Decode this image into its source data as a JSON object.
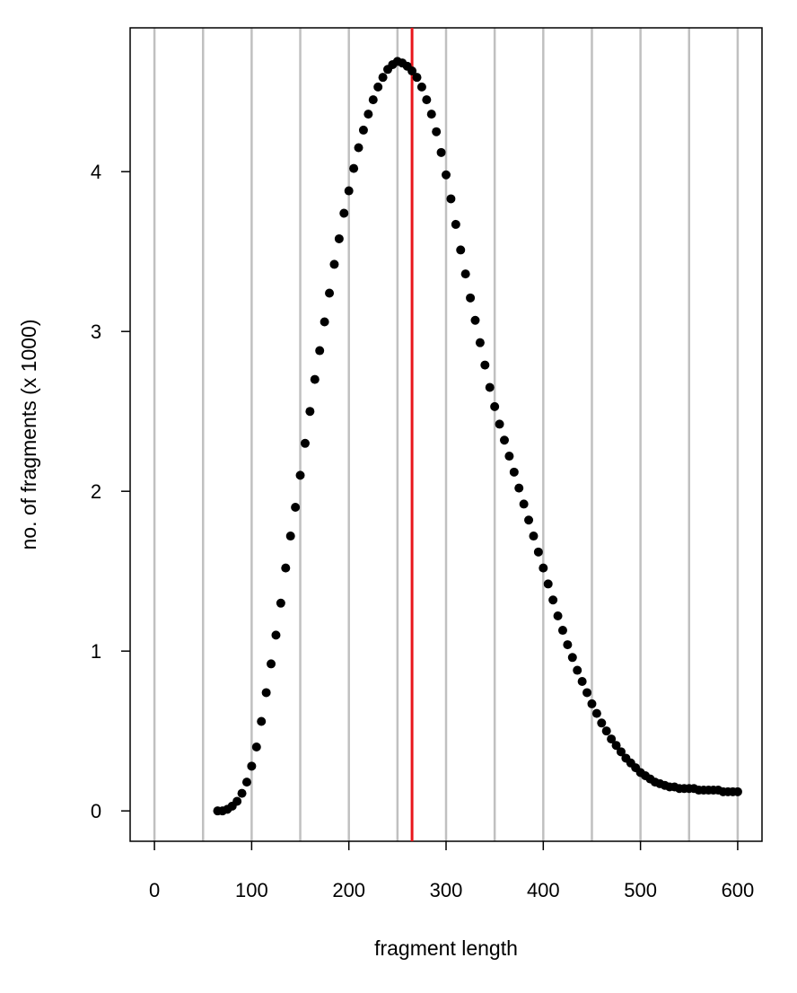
{
  "chart_data": {
    "type": "scatter",
    "xlabel": "fragment length",
    "ylabel": "no. of fragments (x 1000)",
    "xlim": [
      -25,
      625
    ],
    "ylim": [
      -0.19,
      4.9
    ],
    "x_ticks": [
      0,
      100,
      200,
      300,
      400,
      500,
      600
    ],
    "y_ticks": [
      0,
      1,
      2,
      3,
      4
    ],
    "vertical_gridlines": [
      0,
      50,
      100,
      150,
      200,
      250,
      300,
      350,
      400,
      450,
      500,
      550,
      600
    ],
    "reference_line_x": 265,
    "colors": {
      "points": "#000000",
      "reference_line": "#e8161b",
      "gridlines": "#c0c0c0"
    },
    "series": [
      {
        "x": [
          65,
          70,
          75,
          80,
          85,
          90,
          95,
          100,
          105,
          110,
          115,
          120,
          125,
          130,
          135,
          140,
          145,
          150,
          155,
          160,
          165,
          170,
          175,
          180,
          185,
          190,
          195,
          200,
          205,
          210,
          215,
          220,
          225,
          230,
          235,
          240,
          245,
          250,
          255,
          260,
          265,
          270,
          275,
          280,
          285,
          290,
          295,
          300,
          305,
          310,
          315,
          320,
          325,
          330,
          335,
          340,
          345,
          350,
          355,
          360,
          365,
          370,
          375,
          380,
          385,
          390,
          395,
          400,
          405,
          410,
          415,
          420,
          425,
          430,
          435,
          440,
          445,
          450,
          455,
          460,
          465,
          470,
          475,
          480,
          485,
          490,
          495,
          500,
          505,
          510,
          515,
          520,
          525,
          530,
          535,
          540,
          545,
          550,
          555,
          560,
          565,
          570,
          575,
          580,
          585,
          590,
          595,
          600
        ],
        "y": [
          0.0,
          0.0,
          0.01,
          0.03,
          0.06,
          0.11,
          0.18,
          0.28,
          0.4,
          0.56,
          0.74,
          0.92,
          1.1,
          1.3,
          1.52,
          1.72,
          1.9,
          2.1,
          2.3,
          2.5,
          2.7,
          2.88,
          3.06,
          3.24,
          3.42,
          3.58,
          3.74,
          3.88,
          4.02,
          4.15,
          4.26,
          4.36,
          4.45,
          4.53,
          4.59,
          4.64,
          4.67,
          4.69,
          4.68,
          4.66,
          4.63,
          4.59,
          4.53,
          4.45,
          4.36,
          4.25,
          4.12,
          3.98,
          3.83,
          3.67,
          3.51,
          3.36,
          3.21,
          3.07,
          2.93,
          2.79,
          2.65,
          2.53,
          2.42,
          2.32,
          2.22,
          2.12,
          2.02,
          1.92,
          1.82,
          1.72,
          1.62,
          1.52,
          1.42,
          1.32,
          1.22,
          1.13,
          1.04,
          0.96,
          0.88,
          0.81,
          0.74,
          0.67,
          0.61,
          0.55,
          0.5,
          0.45,
          0.41,
          0.37,
          0.33,
          0.3,
          0.27,
          0.24,
          0.22,
          0.2,
          0.18,
          0.17,
          0.16,
          0.15,
          0.15,
          0.14,
          0.14,
          0.14,
          0.14,
          0.13,
          0.13,
          0.13,
          0.13,
          0.13,
          0.12,
          0.12,
          0.12,
          0.12
        ]
      }
    ]
  }
}
